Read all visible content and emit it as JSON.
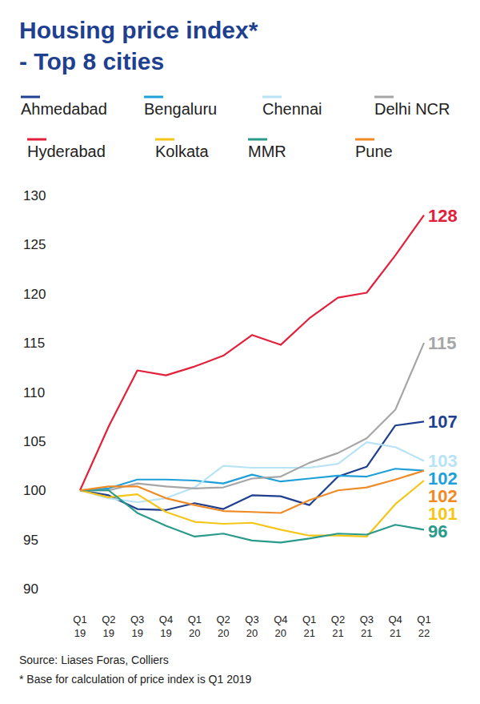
{
  "chart_data": {
    "type": "line",
    "title": "Housing price index*",
    "subtitle": "- Top 8 cities",
    "categories": [
      "Q1 19",
      "Q2 19",
      "Q3 19",
      "Q4 19",
      "Q1 20",
      "Q2 20",
      "Q3 20",
      "Q4 20",
      "Q1 21",
      "Q2 21",
      "Q3 21",
      "Q4 21",
      "Q1 22"
    ],
    "series": [
      {
        "name": "Ahmedabad",
        "color": "#1f3f8f",
        "values": [
          100,
          99.5,
          98.1,
          98,
          98.7,
          98.1,
          99.5,
          99.4,
          98.5,
          101.4,
          102.4,
          106.6,
          107
        ]
      },
      {
        "name": "Bengaluru",
        "color": "#1fa0d8",
        "values": [
          100,
          100.2,
          101.1,
          101.1,
          101,
          100.7,
          101.6,
          100.9,
          101.2,
          101.5,
          101.4,
          102.2,
          102
        ]
      },
      {
        "name": "Chennai",
        "color": "#b8e3f5",
        "values": [
          100,
          99.2,
          98.8,
          99.2,
          100.3,
          102.5,
          102.3,
          102.3,
          102.3,
          102.7,
          104.9,
          104.4,
          103
        ]
      },
      {
        "name": "Delhi NCR",
        "color": "#a6a6a6",
        "values": [
          100,
          100,
          100.7,
          100.4,
          100.2,
          100.3,
          101.2,
          101.4,
          102.8,
          103.8,
          105.3,
          108.2,
          115
        ]
      },
      {
        "name": "Hyderabad",
        "color": "#e3203b",
        "values": [
          100,
          106.5,
          112.2,
          111.7,
          112.6,
          113.7,
          115.8,
          114.8,
          117.5,
          119.6,
          120.1,
          123.9,
          128
        ]
      },
      {
        "name": "Kolkata",
        "color": "#f5c518",
        "values": [
          100,
          99.3,
          99.6,
          97.8,
          96.8,
          96.6,
          96.7,
          96,
          95.4,
          95.4,
          95.3,
          98.6,
          101
        ]
      },
      {
        "name": "MMR",
        "color": "#2a9a8a",
        "values": [
          100,
          100,
          97.7,
          96.4,
          95.3,
          95.6,
          94.9,
          94.7,
          95.1,
          95.6,
          95.5,
          96.5,
          96
        ]
      },
      {
        "name": "Pune",
        "color": "#f08a24",
        "values": [
          100,
          100.4,
          100.4,
          99.2,
          98.5,
          97.9,
          97.8,
          97.7,
          99,
          100,
          100.3,
          101.1,
          102
        ]
      }
    ],
    "ylim": [
      90,
      130
    ],
    "yticks": [
      90,
      95,
      100,
      105,
      110,
      115,
      120,
      125,
      130
    ],
    "grid": false,
    "data_labels": true,
    "annotations": [
      "Source: Liases Foras, Colliers",
      "* Base for calculation of price index is Q1 2019"
    ]
  }
}
